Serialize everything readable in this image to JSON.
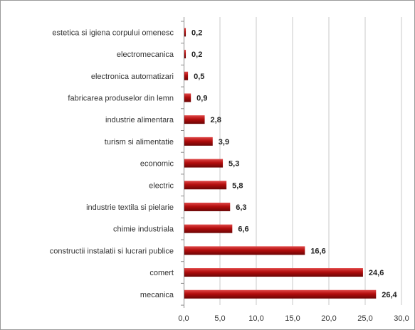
{
  "chart_data": {
    "type": "bar",
    "orientation": "horizontal",
    "categories": [
      "estetica si igiena corpului omenesc",
      "electromecanica",
      "electronica automatizari",
      "fabricarea produselor din lemn",
      "industrie alimentara",
      "turism si alimentatie",
      "economic",
      "electric",
      "industrie textila si pielarie",
      "chimie industriala",
      "constructii instalatii si lucrari publice",
      "comert",
      "mecanica"
    ],
    "values": [
      0.2,
      0.2,
      0.5,
      0.9,
      2.8,
      3.9,
      5.3,
      5.8,
      6.3,
      6.6,
      16.6,
      24.6,
      26.4
    ],
    "value_labels": [
      "0,2",
      "0,2",
      "0,5",
      "0,9",
      "2,8",
      "3,9",
      "5,3",
      "5,8",
      "6,3",
      "6,6",
      "16,6",
      "24,6",
      "26,4"
    ],
    "x_ticks": [
      0,
      5,
      10,
      15,
      20,
      25,
      30
    ],
    "x_tick_labels": [
      "0,0",
      "5,0",
      "10,0",
      "15,0",
      "20,0",
      "25,0",
      "30,0"
    ],
    "xlim": [
      0,
      30
    ],
    "grid": true,
    "bar_color": "#b30d0d",
    "bar_highlight": "#e04848",
    "bar_shadow": "#6a0505",
    "title": "",
    "xlabel": "",
    "ylabel": ""
  }
}
